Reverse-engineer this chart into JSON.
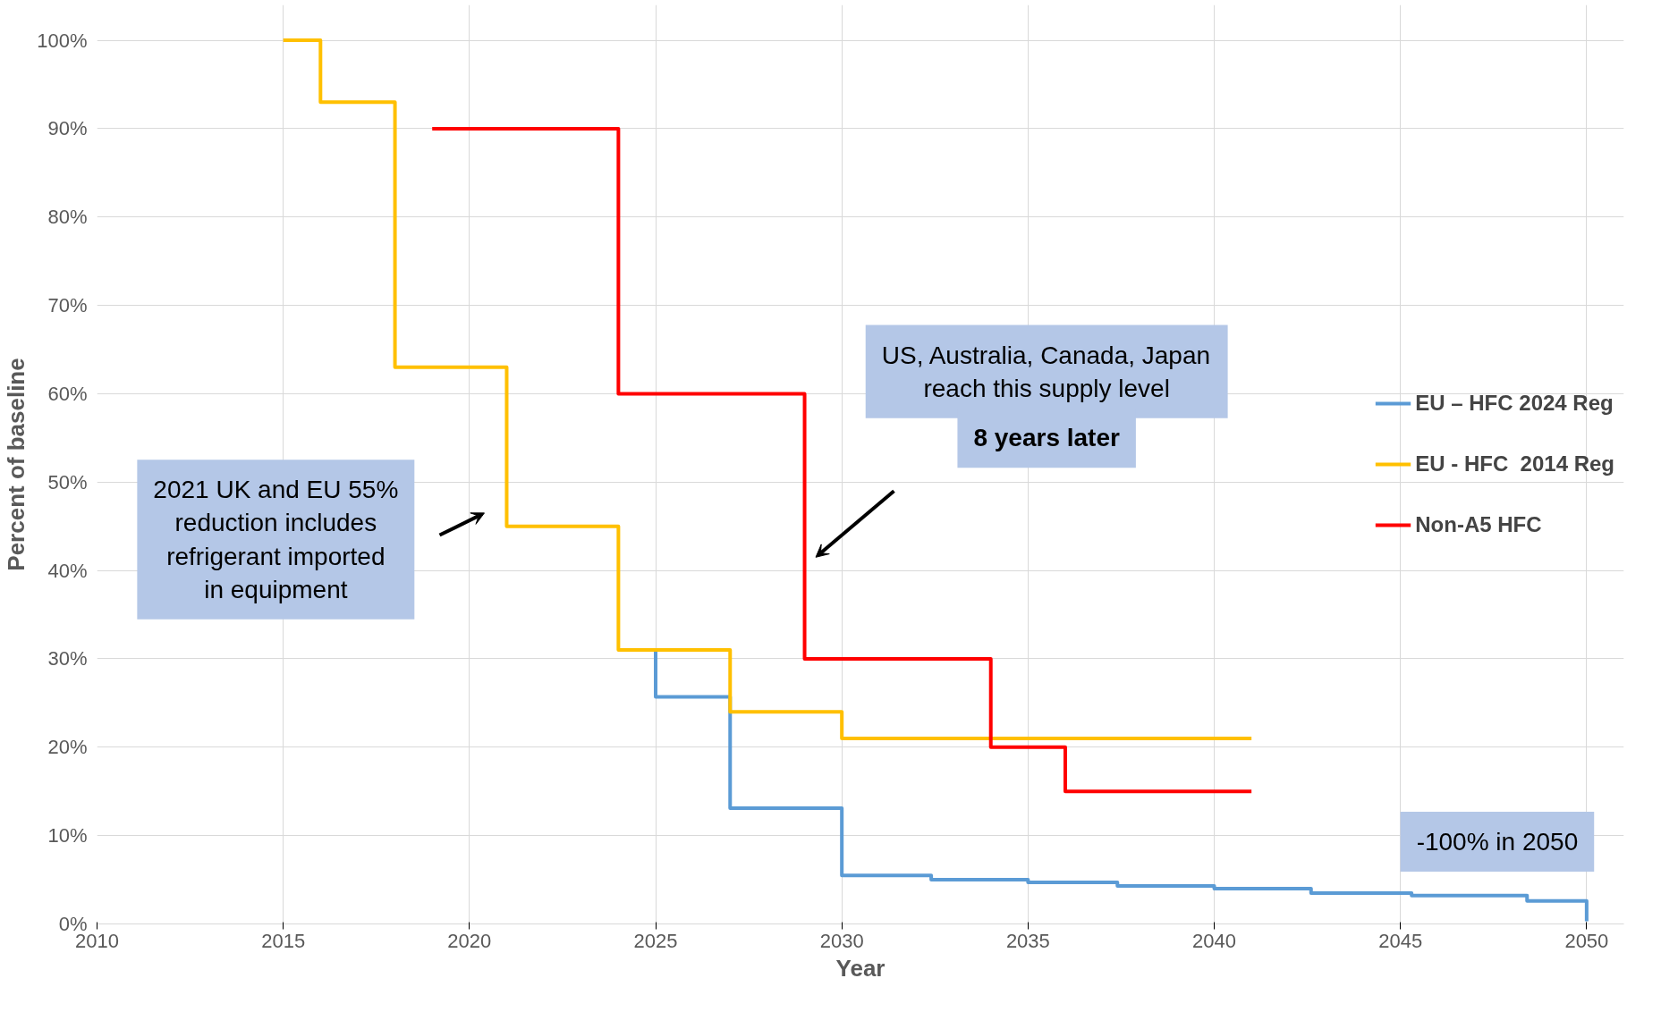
{
  "chart_data": {
    "type": "step",
    "xlabel": "Year",
    "ylabel": "Percent of baseline",
    "xlim": [
      2010,
      2051
    ],
    "ylim": [
      0,
      104
    ],
    "xticks": [
      2010,
      2015,
      2020,
      2025,
      2030,
      2035,
      2040,
      2045,
      2050
    ],
    "yticks": [
      {
        "value": 0,
        "label": "0%"
      },
      {
        "value": 10,
        "label": "10%"
      },
      {
        "value": 20,
        "label": "20%"
      },
      {
        "value": 30,
        "label": "30%"
      },
      {
        "value": 40,
        "label": "40%"
      },
      {
        "value": 50,
        "label": "50%"
      },
      {
        "value": 60,
        "label": "60%"
      },
      {
        "value": 70,
        "label": "70%"
      },
      {
        "value": 80,
        "label": "80%"
      },
      {
        "value": 90,
        "label": "90%"
      },
      {
        "value": 100,
        "label": "100%"
      }
    ],
    "grid": true,
    "legend": "right",
    "line_style": "solid",
    "series": [
      {
        "name": "EU – HFC 2024 Reg",
        "color": "#5b9bd5",
        "x": [
          2025,
          2025,
          2027,
          2030,
          2032.4,
          2035,
          2037.4,
          2040,
          2042.6,
          2045.3,
          2048.4,
          2050
        ],
        "values": [
          31,
          25.7,
          13.1,
          5.5,
          5.0,
          4.7,
          4.3,
          4.0,
          3.5,
          3.2,
          2.6,
          0.3
        ]
      },
      {
        "name": "EU - HFC  2014 Reg",
        "color": "#ffc000",
        "x": [
          2015,
          2016,
          2018,
          2021,
          2024,
          2027,
          2030,
          2041
        ],
        "values": [
          100,
          93,
          63,
          45,
          31,
          24,
          21,
          21
        ]
      },
      {
        "name": "Non-A5 HFC",
        "color": "#ff0000",
        "x": [
          2019,
          2024,
          2029,
          2034,
          2036,
          2041
        ],
        "values": [
          90,
          60,
          30,
          20,
          15,
          15
        ]
      }
    ],
    "annotations": [
      "2021 UK and EU 55%\nreduction includes\nrefrigerant imported\nin equipment",
      "US, Australia, Canada, Japan\nreach this supply level",
      "8 years later",
      "-100% in 2050"
    ]
  }
}
